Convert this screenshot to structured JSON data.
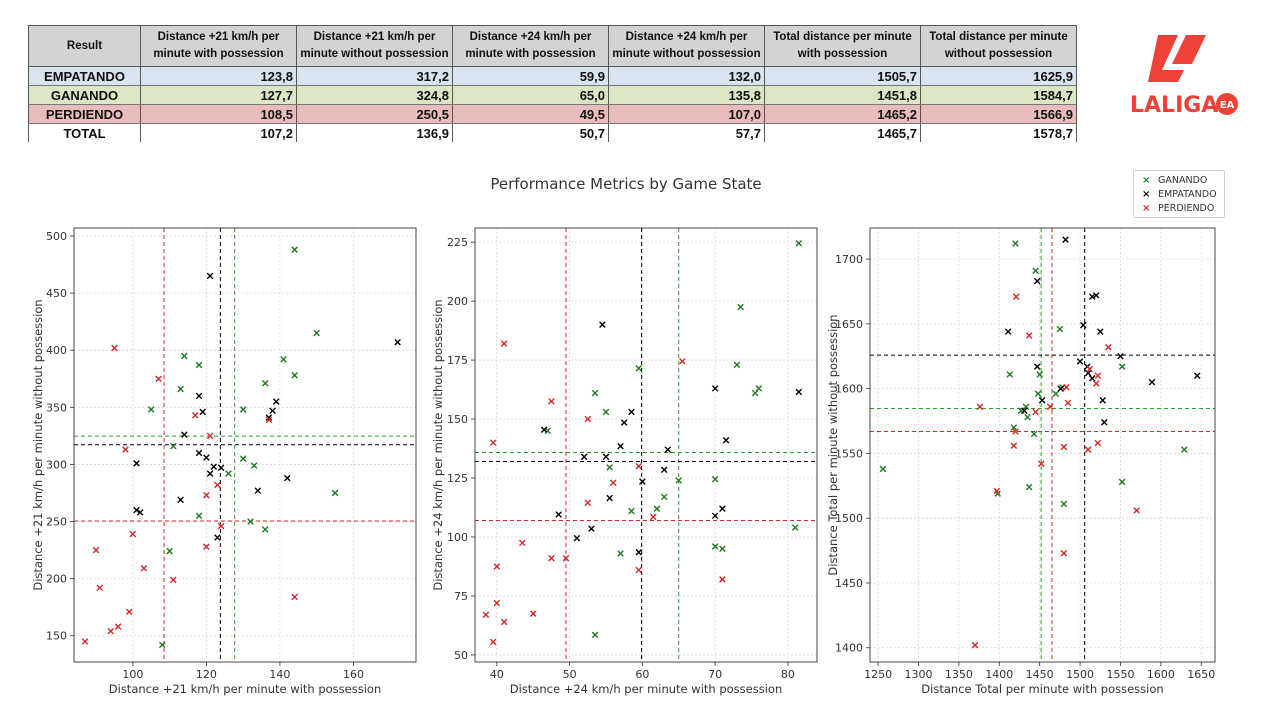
{
  "table": {
    "headers": [
      "Result",
      "Distance +21 km/h per minute with possession",
      "Distance +21 km/h per minute without possession",
      "Distance +24 km/h per minute with possession",
      "Distance +24 km/h per minute without possession",
      "Total distance per minute with possession",
      "Total distance per minute without possession"
    ],
    "rows": [
      {
        "label": "EMPATANDO",
        "bg": "#dae3f0",
        "values": [
          "123,8",
          "317,2",
          "59,9",
          "132,0",
          "1505,7",
          "1625,9"
        ]
      },
      {
        "label": "GANANDO",
        "bg": "#dbe6c4",
        "values": [
          "127,7",
          "324,8",
          "65,0",
          "135,8",
          "1451,8",
          "1584,7"
        ]
      },
      {
        "label": "PERDIENDO",
        "bg": "#e8bcbc",
        "values": [
          "108,5",
          "250,5",
          "49,5",
          "107,0",
          "1465,2",
          "1566,9"
        ]
      },
      {
        "label": "TOTAL",
        "bg": "#ffffff",
        "values": [
          "107,2",
          "136,9",
          "50,7",
          "57,7",
          "1465,7",
          "1578,7"
        ]
      }
    ]
  },
  "logo": {
    "text": "LALIGA",
    "badge": "EA",
    "color": "#ee4238"
  },
  "chart_title": "Performance Metrics by Game State",
  "legend": [
    {
      "name": "GANANDO",
      "color": "#1f7a1f"
    },
    {
      "name": "EMPATANDO",
      "color": "#000000"
    },
    {
      "name": "PERDIENDO",
      "color": "#d62728"
    }
  ],
  "chart_data": [
    {
      "type": "scatter",
      "xlabel": "Distance +21 km/h per minute with possession",
      "ylabel": "Distance +21 km/h per minute without possession",
      "xlim": [
        84,
        177
      ],
      "ylim": [
        127,
        507
      ],
      "xticks": [
        100,
        120,
        140,
        160
      ],
      "yticks": [
        150,
        200,
        250,
        300,
        350,
        400,
        450,
        500
      ],
      "means": {
        "GANANDO": [
          127.7,
          324.8
        ],
        "EMPATANDO": [
          123.8,
          317.2
        ],
        "PERDIENDO": [
          108.5,
          250.5
        ]
      },
      "series": [
        {
          "name": "GANANDO",
          "points": [
            [
              144,
              488
            ],
            [
              150,
              415
            ],
            [
              141,
              392
            ],
            [
              144,
              378
            ],
            [
              118,
              387
            ],
            [
              114,
              395
            ],
            [
              113,
              366
            ],
            [
              136,
              371
            ],
            [
              105,
              348
            ],
            [
              130,
              348
            ],
            [
              111,
              316
            ],
            [
              130,
              305
            ],
            [
              133,
              299
            ],
            [
              126,
              292
            ],
            [
              118,
              255
            ],
            [
              132,
              250
            ],
            [
              136,
              243
            ],
            [
              155,
              275
            ],
            [
              110,
              224
            ],
            [
              108,
              142
            ]
          ]
        },
        {
          "name": "EMPATANDO",
          "points": [
            [
              121,
              465
            ],
            [
              172,
              407
            ],
            [
              139,
              355
            ],
            [
              137,
              341
            ],
            [
              138,
              347
            ],
            [
              118,
              360
            ],
            [
              119,
              346
            ],
            [
              114,
              326
            ],
            [
              101,
              301
            ],
            [
              118,
              310
            ],
            [
              120,
              306
            ],
            [
              122,
              298
            ],
            [
              124,
              297
            ],
            [
              121,
              292
            ],
            [
              113,
              269
            ],
            [
              134,
              277
            ],
            [
              142,
              288
            ],
            [
              101,
              260
            ],
            [
              102,
              258
            ],
            [
              123,
              236
            ]
          ]
        },
        {
          "name": "PERDIENDO",
          "points": [
            [
              95,
              402
            ],
            [
              107,
              375
            ],
            [
              98,
              313
            ],
            [
              121,
              325
            ],
            [
              137,
              339
            ],
            [
              117,
              343
            ],
            [
              123,
              282
            ],
            [
              120,
              273
            ],
            [
              124,
              246
            ],
            [
              120,
              228
            ],
            [
              100,
              239
            ],
            [
              90,
              225
            ],
            [
              103,
              209
            ],
            [
              111,
              199
            ],
            [
              91,
              192
            ],
            [
              99,
              171
            ],
            [
              94,
              154
            ],
            [
              96,
              158
            ],
            [
              87,
              145
            ],
            [
              144,
              184
            ]
          ]
        }
      ]
    },
    {
      "type": "scatter",
      "xlabel": "Distance +24 km/h per minute with possession",
      "ylabel": "Distance +24 km/h per minute without possession",
      "xlim": [
        37,
        84
      ],
      "ylim": [
        47,
        231
      ],
      "xticks": [
        40,
        50,
        60,
        70,
        80
      ],
      "yticks": [
        50,
        75,
        100,
        125,
        150,
        175,
        200,
        225
      ],
      "means": {
        "GANANDO": [
          65.0,
          135.8
        ],
        "EMPATANDO": [
          59.9,
          132.0
        ],
        "PERDIENDO": [
          49.5,
          107.0
        ]
      },
      "series": [
        {
          "name": "GANANDO",
          "points": [
            [
              81.5,
              224.5
            ],
            [
              73.5,
              197.5
            ],
            [
              73,
              173
            ],
            [
              76,
              163
            ],
            [
              75.5,
              161
            ],
            [
              59.5,
              171.5
            ],
            [
              53.5,
              161
            ],
            [
              55,
              153
            ],
            [
              47,
              145
            ],
            [
              55.5,
              129.5
            ],
            [
              58.5,
              111
            ],
            [
              62,
              112
            ],
            [
              63,
              117
            ],
            [
              65,
              124
            ],
            [
              70,
              124.5
            ],
            [
              57,
              93
            ],
            [
              70,
              96
            ],
            [
              71,
              95
            ],
            [
              81,
              104
            ],
            [
              53.5,
              58.5
            ]
          ]
        },
        {
          "name": "EMPATANDO",
          "points": [
            [
              54.5,
              190
            ],
            [
              81.5,
              161.5
            ],
            [
              70,
              163
            ],
            [
              58.5,
              153
            ],
            [
              46.5,
              145.5
            ],
            [
              57.5,
              148.5
            ],
            [
              57,
              138.5
            ],
            [
              55,
              134
            ],
            [
              52,
              134
            ],
            [
              63.5,
              137
            ],
            [
              63,
              128.5
            ],
            [
              60,
              123.5
            ],
            [
              55.5,
              116.5
            ],
            [
              71.5,
              141
            ],
            [
              71,
              112
            ],
            [
              70,
              109
            ],
            [
              48.5,
              109.5
            ],
            [
              53,
              103.5
            ],
            [
              51,
              99.5
            ],
            [
              59.5,
              93.5
            ]
          ]
        },
        {
          "name": "PERDIENDO",
          "points": [
            [
              41,
              182
            ],
            [
              65.5,
              174.5
            ],
            [
              39.5,
              140
            ],
            [
              47.5,
              157.5
            ],
            [
              52.5,
              150
            ],
            [
              59.5,
              130
            ],
            [
              56,
              123
            ],
            [
              61.5,
              108.5
            ],
            [
              52.5,
              114.5
            ],
            [
              43.5,
              97.5
            ],
            [
              47.5,
              91
            ],
            [
              49.5,
              91
            ],
            [
              59.5,
              86
            ],
            [
              71,
              82
            ],
            [
              40,
              87.5
            ],
            [
              40,
              72
            ],
            [
              38.5,
              67
            ],
            [
              41,
              64
            ],
            [
              45,
              67.5
            ],
            [
              39.5,
              55.5
            ]
          ]
        }
      ]
    },
    {
      "type": "scatter",
      "xlabel": "Distance Total per minute with possession",
      "ylabel": "Distance Total per minute without possession",
      "xlim": [
        1240,
        1667
      ],
      "ylim": [
        1389,
        1724
      ],
      "xticks": [
        1250,
        1300,
        1350,
        1400,
        1450,
        1500,
        1550,
        1600,
        1650
      ],
      "yticks": [
        1400,
        1450,
        1500,
        1550,
        1600,
        1650,
        1700
      ],
      "means": {
        "GANANDO": [
          1451.8,
          1584.7
        ],
        "EMPATANDO": [
          1505.7,
          1625.9
        ],
        "PERDIENDO": [
          1465.2,
          1566.9
        ]
      },
      "series": [
        {
          "name": "GANANDO",
          "points": [
            [
              1420,
              1712
            ],
            [
              1445,
              1691
            ],
            [
              1475,
              1646
            ],
            [
              1413,
              1611
            ],
            [
              1450,
              1611
            ],
            [
              1470,
              1596
            ],
            [
              1478,
              1601
            ],
            [
              1552,
              1617
            ],
            [
              1435,
              1578
            ],
            [
              1418,
              1570
            ],
            [
              1443,
              1565
            ],
            [
              1427,
              1583
            ],
            [
              1433,
              1586
            ],
            [
              1437,
              1524
            ],
            [
              1398,
              1519
            ],
            [
              1480,
              1511
            ],
            [
              1552,
              1528
            ],
            [
              1629,
              1553
            ],
            [
              1256,
              1538
            ],
            [
              1448,
              1596
            ]
          ]
        },
        {
          "name": "EMPATANDO",
          "points": [
            [
              1482,
              1715
            ],
            [
              1515,
              1671
            ],
            [
              1520,
              1672
            ],
            [
              1504,
              1649
            ],
            [
              1525,
              1644
            ],
            [
              1411,
              1644
            ],
            [
              1447,
              1683
            ],
            [
              1550,
              1625
            ],
            [
              1500,
              1621
            ],
            [
              1509,
              1617
            ],
            [
              1510,
              1612
            ],
            [
              1515,
              1608
            ],
            [
              1589,
              1605
            ],
            [
              1645,
              1610
            ],
            [
              1476,
              1600
            ],
            [
              1453,
              1591
            ],
            [
              1447,
              1617
            ],
            [
              1431,
              1583
            ],
            [
              1528,
              1591
            ],
            [
              1530,
              1574
            ]
          ]
        },
        {
          "name": "PERDIENDO",
          "points": [
            [
              1421,
              1671
            ],
            [
              1437,
              1641
            ],
            [
              1535,
              1632
            ],
            [
              1512,
              1615
            ],
            [
              1522,
              1610
            ],
            [
              1520,
              1604
            ],
            [
              1483,
              1601
            ],
            [
              1485,
              1589
            ],
            [
              1463,
              1586
            ],
            [
              1445,
              1582
            ],
            [
              1376,
              1586
            ],
            [
              1420,
              1567
            ],
            [
              1418,
              1556
            ],
            [
              1452,
              1542
            ],
            [
              1480,
              1555
            ],
            [
              1510,
              1553
            ],
            [
              1522,
              1558
            ],
            [
              1570,
              1506
            ],
            [
              1397,
              1521
            ],
            [
              1370,
              1402
            ],
            [
              1480,
              1473
            ]
          ]
        }
      ]
    }
  ]
}
